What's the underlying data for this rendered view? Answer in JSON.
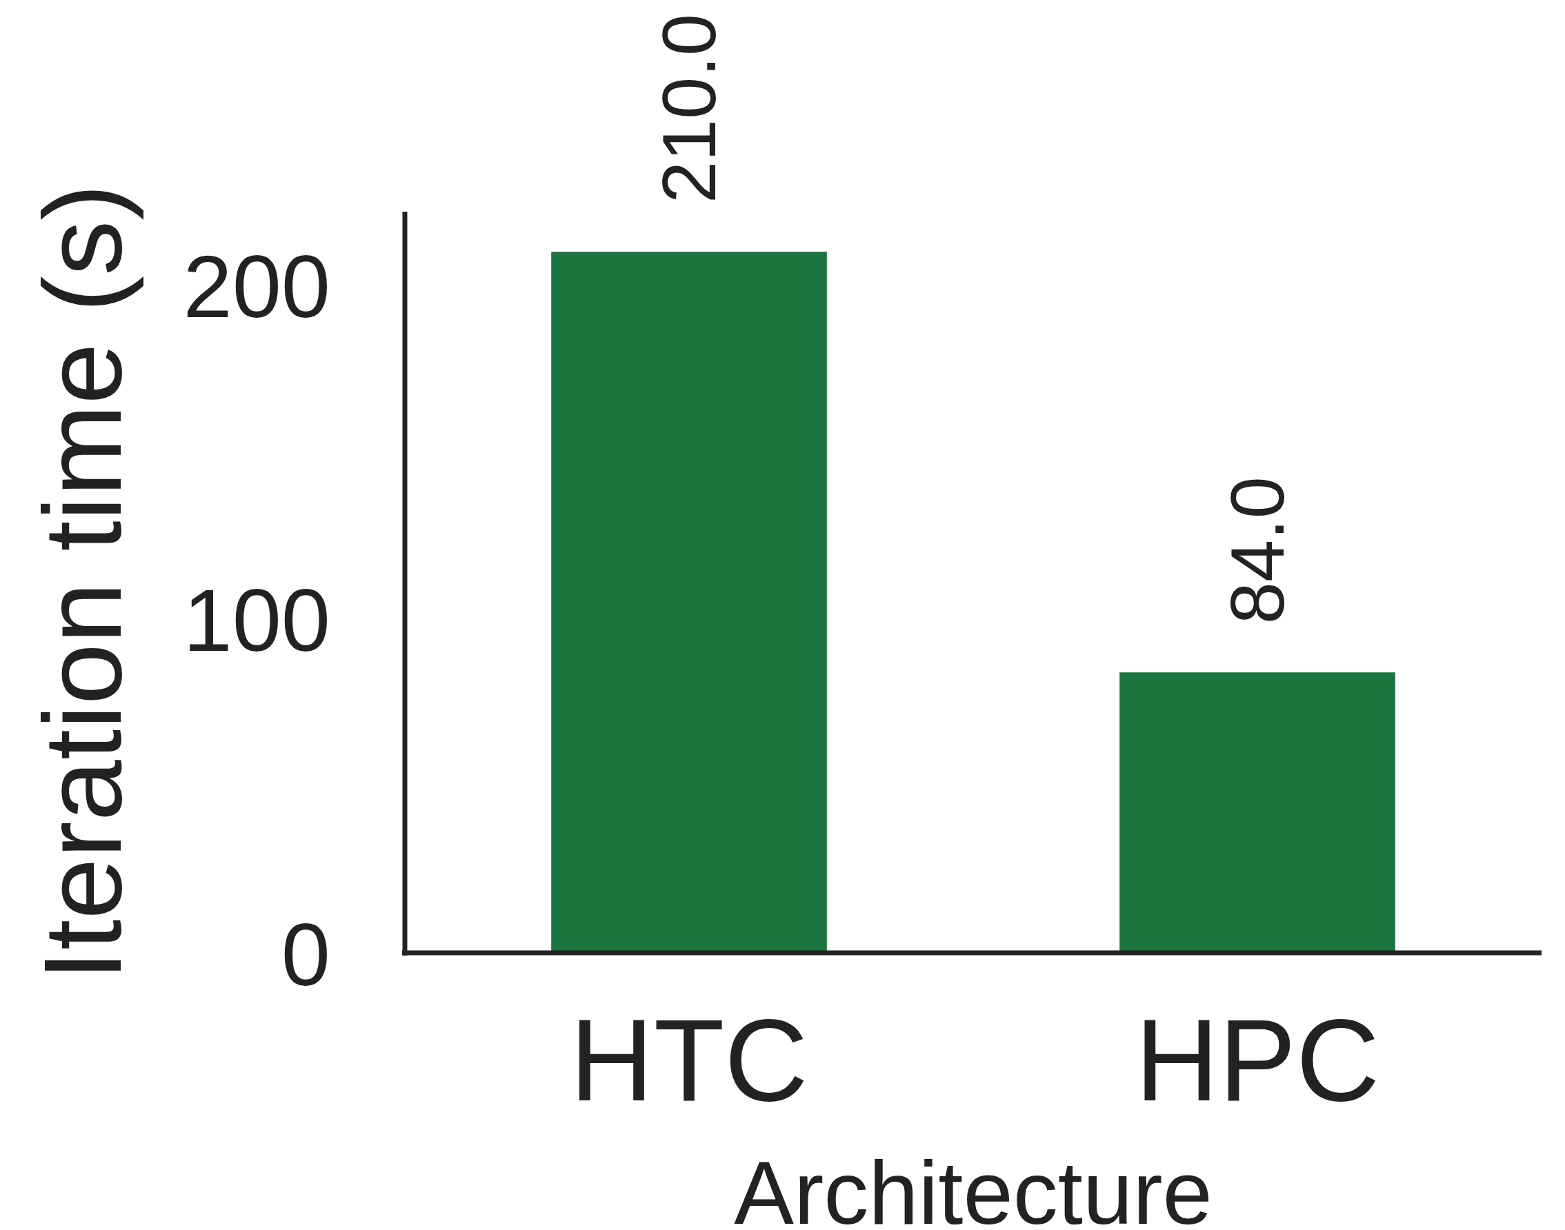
{
  "chart_data": {
    "type": "bar",
    "xlabel": "Architecture",
    "ylabel": "Iteration time (s)",
    "categories": [
      "HTC",
      "HPC"
    ],
    "values": [
      210.0,
      84.0
    ],
    "value_labels": [
      "210.0",
      "84.0"
    ],
    "color": "#1c743f",
    "ylim": [
      0,
      222
    ],
    "yticks": [
      0,
      100,
      200
    ],
    "grid": false
  }
}
